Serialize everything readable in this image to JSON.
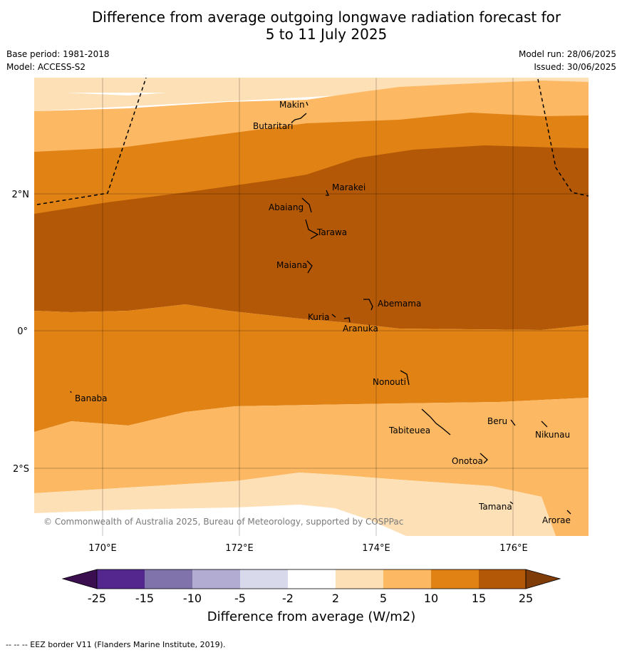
{
  "title_line1": "Difference from average outgoing longwave radiation forecast for",
  "title_line2": "5 to 11 July 2025",
  "base_period": "Base period: 1981-2018",
  "model": "Model: ACCESS-S2",
  "model_run": "Model run: 28/06/2025",
  "issued": "Issued: 30/06/2025",
  "copyright": "© Commonwealth of Australia 2025, Bureau of Meteorology, supported by COSPPac",
  "footnote": "--  --  -- EEZ border V11 (Flanders Marine Institute, 2019).",
  "lat_labels": [
    "2°N",
    "0°",
    "2°S"
  ],
  "lon_labels": [
    "170°E",
    "172°E",
    "174°E",
    "176°E"
  ],
  "colorbar": {
    "label": "Difference from average (W/m2)",
    "ticks": [
      "-25",
      "-15",
      "-10",
      "-5",
      "-2",
      "2",
      "5",
      "10",
      "15",
      "25"
    ],
    "colors": [
      "#3b0f4f",
      "#54278f",
      "#8073ac",
      "#b2abd2",
      "#d8daeb",
      "#ffffff",
      "#fee0b6",
      "#fdb863",
      "#e08214",
      "#b35806",
      "#7f3b08"
    ]
  },
  "places": [
    {
      "name": "Makin"
    },
    {
      "name": "Butaritari"
    },
    {
      "name": "Marakei"
    },
    {
      "name": "Abaiang"
    },
    {
      "name": "Tarawa"
    },
    {
      "name": "Maiana"
    },
    {
      "name": "Abemama"
    },
    {
      "name": "Kuria"
    },
    {
      "name": "Aranuka"
    },
    {
      "name": "Nonouti"
    },
    {
      "name": "Banaba"
    },
    {
      "name": "Beru"
    },
    {
      "name": "Tabiteuea"
    },
    {
      "name": "Nikunau"
    },
    {
      "name": "Onotoa"
    },
    {
      "name": "Tamana"
    },
    {
      "name": "Arorae"
    }
  ]
}
